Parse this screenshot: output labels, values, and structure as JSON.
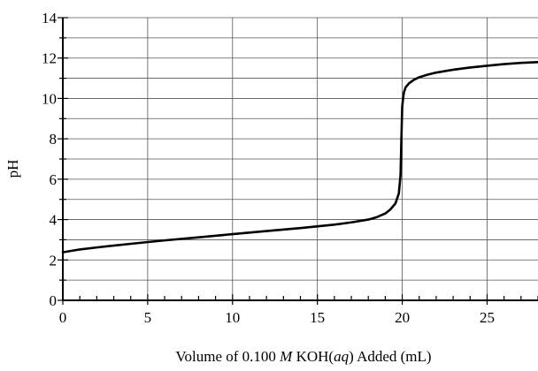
{
  "chart_data": {
    "type": "line",
    "title": "",
    "xlabel": {
      "prefix": "Volume of 0.100 ",
      "m": "M",
      "koh": " KOH(",
      "aq": "aq",
      "suffix": ") Added (mL)"
    },
    "ylabel": "pH",
    "xlim": [
      0,
      28
    ],
    "ylim": [
      0,
      14
    ],
    "grid": true,
    "xticks": [
      0,
      5,
      10,
      15,
      20,
      25
    ],
    "yticks": [
      0,
      2,
      4,
      6,
      8,
      10,
      12,
      14
    ],
    "x_minor_step": 1,
    "y_minor_step": 1,
    "series": [
      {
        "x": [
          0,
          1,
          2,
          4,
          6,
          8,
          10,
          12,
          14,
          16,
          17,
          18,
          18.5,
          19,
          19.3,
          19.6,
          19.8,
          19.9,
          19.95,
          20,
          20.05,
          20.1,
          20.2,
          20.4,
          20.7,
          21,
          21.5,
          22,
          23,
          24,
          25,
          26,
          27,
          28
        ],
        "y": [
          2.38,
          2.52,
          2.62,
          2.8,
          2.97,
          3.12,
          3.28,
          3.43,
          3.58,
          3.75,
          3.86,
          4.0,
          4.12,
          4.3,
          4.5,
          4.8,
          5.3,
          6.2,
          8.0,
          9.6,
          10.0,
          10.3,
          10.55,
          10.75,
          10.93,
          11.05,
          11.18,
          11.28,
          11.42,
          11.53,
          11.62,
          11.7,
          11.76,
          11.8
        ],
        "color": "#000000"
      }
    ]
  }
}
